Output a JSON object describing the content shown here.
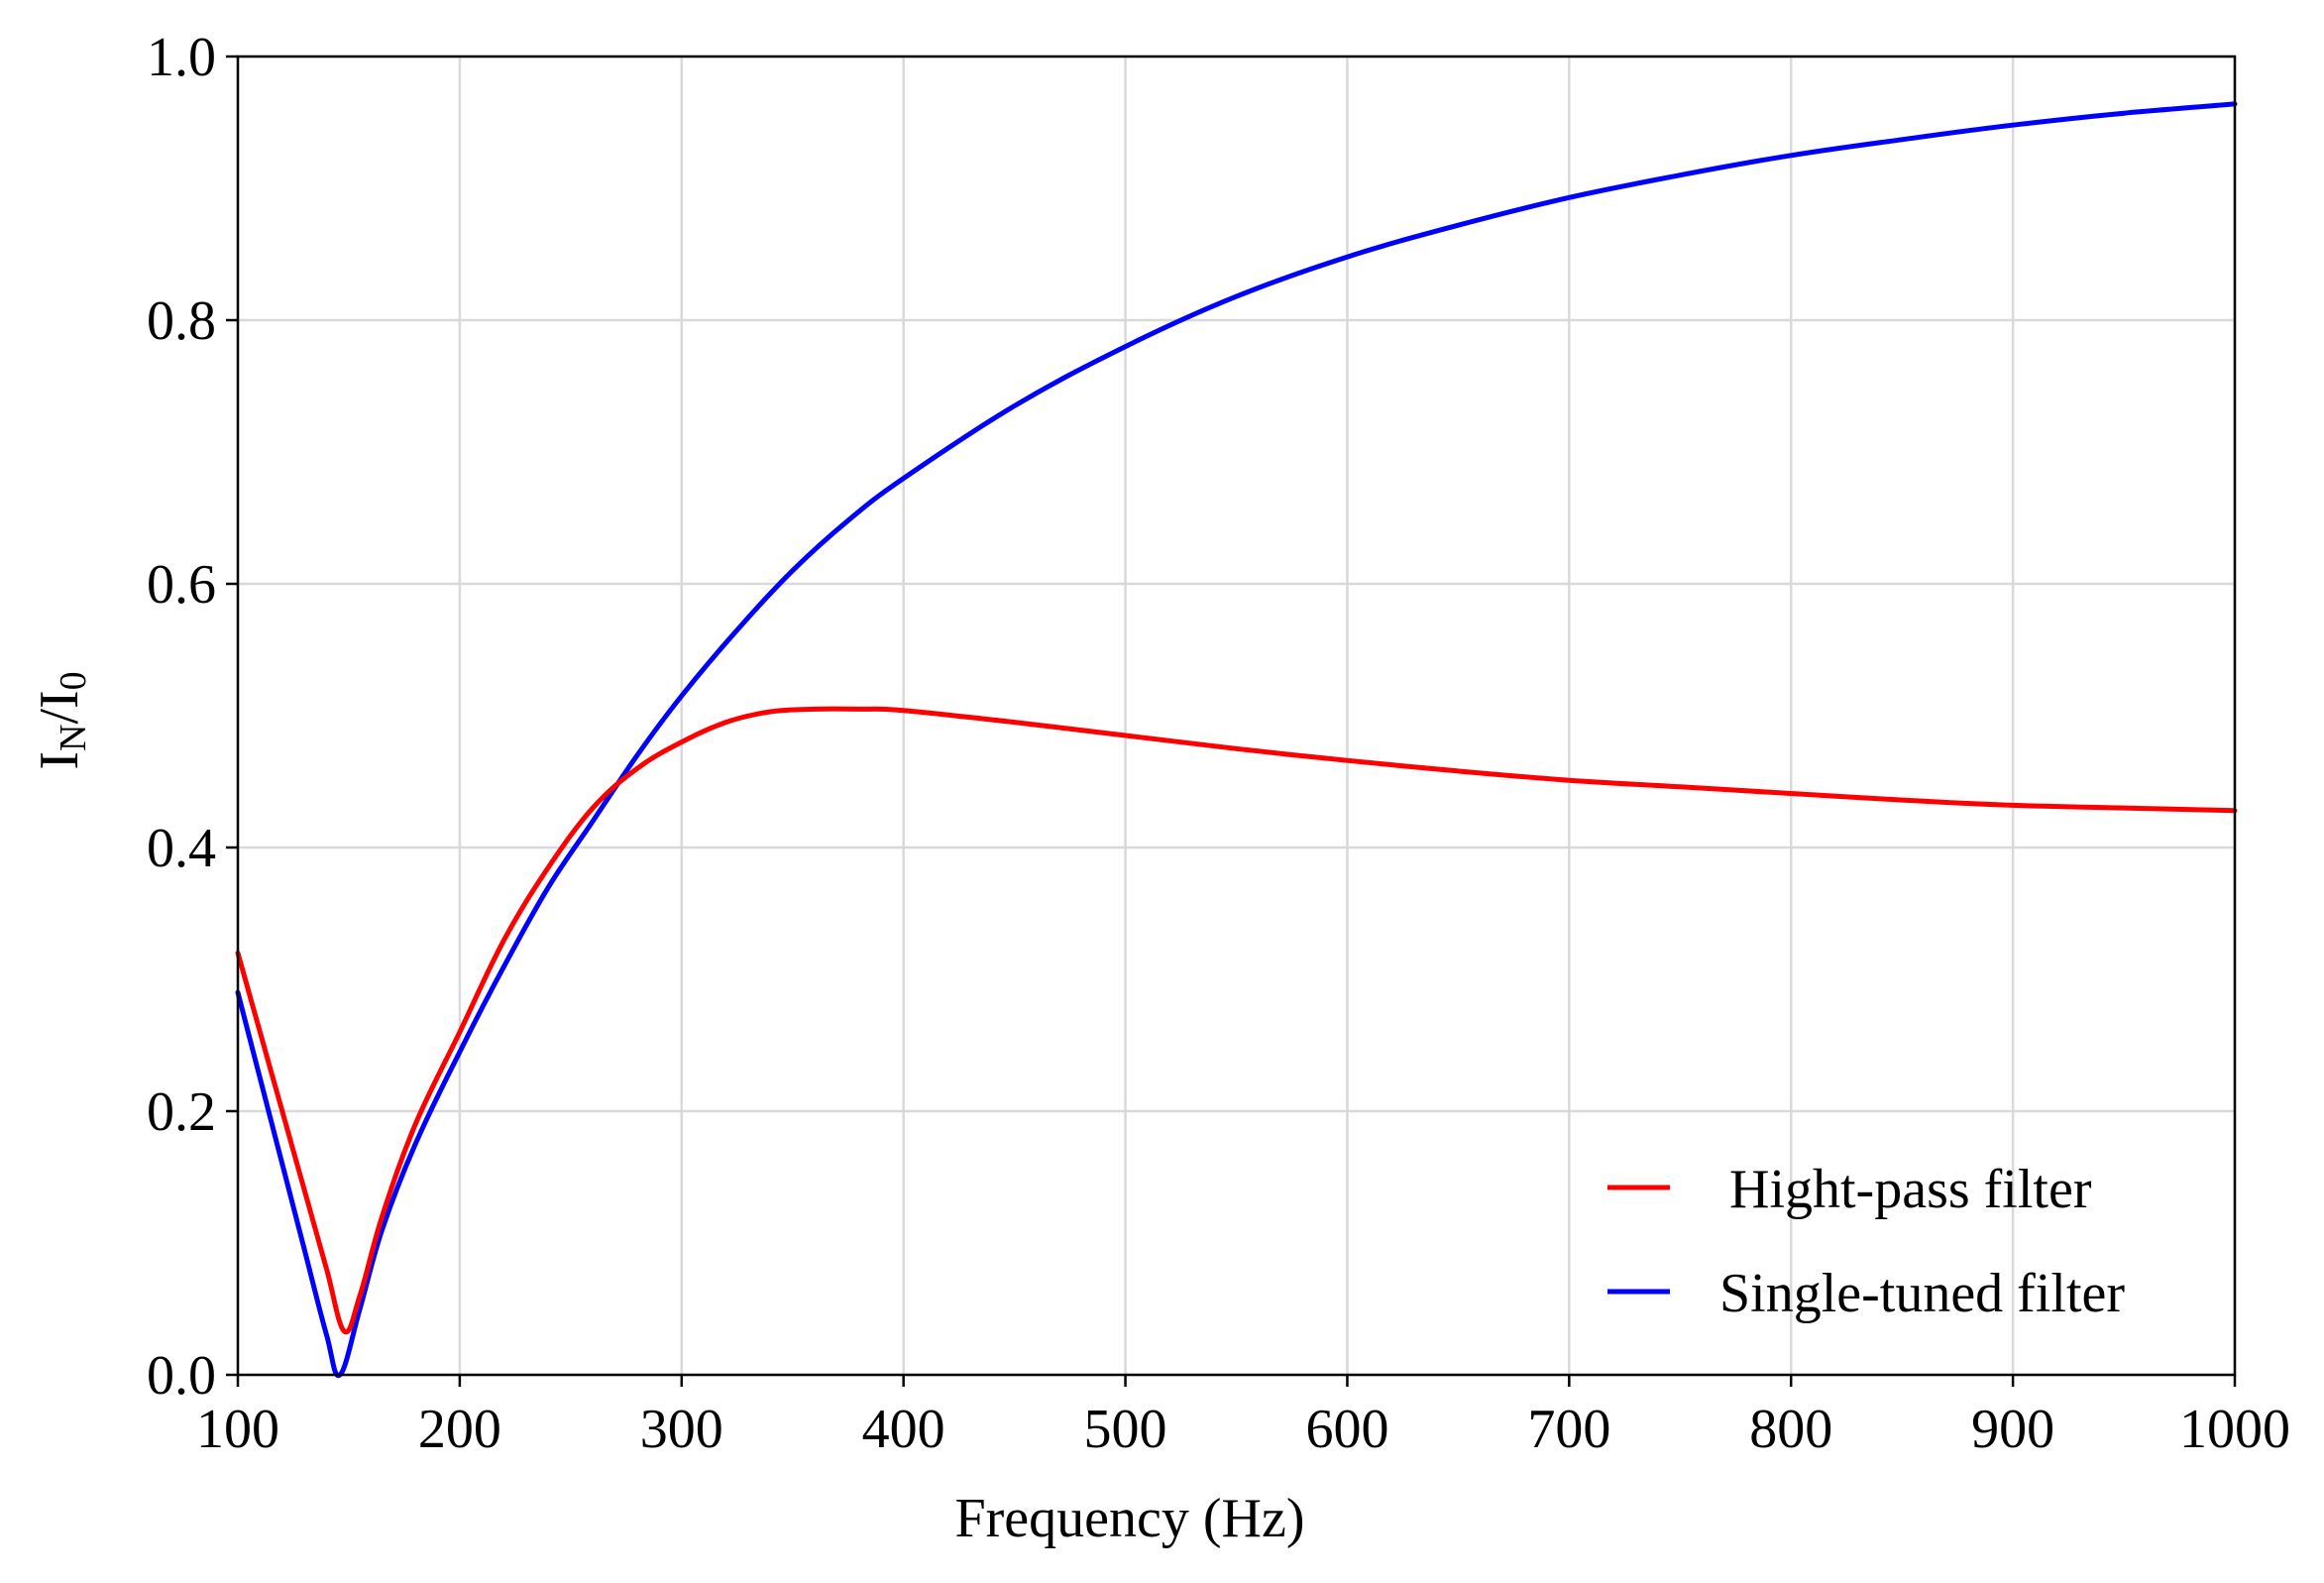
{
  "chart_data": {
    "type": "line",
    "title": "",
    "xlabel": "Frequency (Hz)",
    "ylabel": {
      "main": "I",
      "sub1": "N",
      "sep": "/I",
      "sub2": "0"
    },
    "xlim": [
      100,
      1000
    ],
    "ylim": [
      0.0,
      1.0
    ],
    "xticks": [
      100,
      200,
      300,
      400,
      500,
      600,
      700,
      800,
      900,
      1000
    ],
    "yticks": [
      "0.0",
      "0.2",
      "0.4",
      "0.6",
      "0.8",
      "1.0"
    ],
    "grid": true,
    "legend_position": "bottom-right",
    "series": [
      {
        "name": "Hight-pass filter",
        "color": "#ff0000",
        "x": [
          100,
          110,
          120,
          130,
          140,
          148,
          155,
          165,
          180,
          200,
          220,
          240,
          260,
          280,
          300,
          320,
          340,
          360,
          380,
          400,
          450,
          500,
          550,
          600,
          650,
          700,
          750,
          800,
          850,
          900,
          950,
          1000
        ],
        "y": [
          0.32,
          0.26,
          0.2,
          0.14,
          0.08,
          0.033,
          0.06,
          0.12,
          0.19,
          0.26,
          0.33,
          0.385,
          0.43,
          0.46,
          0.48,
          0.495,
          0.503,
          0.505,
          0.505,
          0.504,
          0.495,
          0.485,
          0.475,
          0.466,
          0.458,
          0.451,
          0.446,
          0.441,
          0.436,
          0.432,
          0.43,
          0.428
        ]
      },
      {
        "name": "Single-tuned filter",
        "color": "#0000ff",
        "x": [
          100,
          110,
          120,
          130,
          140,
          146,
          155,
          165,
          180,
          200,
          220,
          240,
          260,
          280,
          300,
          325,
          350,
          375,
          400,
          450,
          500,
          550,
          600,
          650,
          700,
          750,
          800,
          850,
          900,
          950,
          1000
        ],
        "y": [
          0.29,
          0.225,
          0.16,
          0.095,
          0.03,
          0.0,
          0.05,
          0.11,
          0.175,
          0.245,
          0.31,
          0.37,
          0.42,
          0.47,
          0.515,
          0.565,
          0.61,
          0.648,
          0.68,
          0.735,
          0.78,
          0.818,
          0.848,
          0.872,
          0.893,
          0.91,
          0.925,
          0.937,
          0.948,
          0.957,
          0.964
        ]
      }
    ]
  }
}
